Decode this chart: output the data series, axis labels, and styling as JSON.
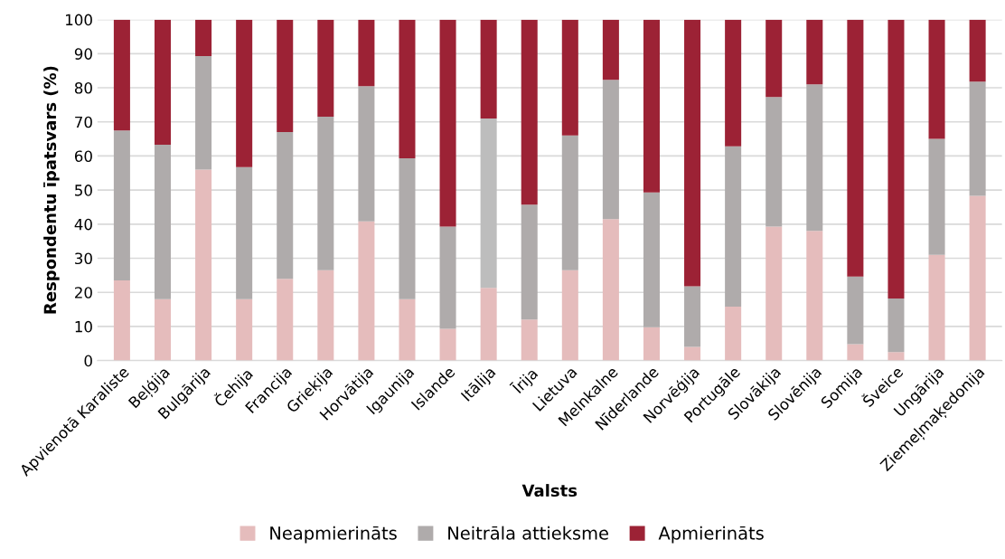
{
  "chart_data": {
    "type": "bar",
    "stacked": true,
    "xlabel": "Valsts",
    "ylabel": "Respondentu īpatsvars (%)",
    "categories": [
      "Apvienotā Karaliste",
      "Beļģija",
      "Bulgārija",
      "Čehija",
      "Francija",
      "Grieķija",
      "Horvātija",
      "Igaunija",
      "Islande",
      "Itālija",
      "Īrija",
      "Lietuva",
      "Melnkalne",
      "Nīderlande",
      "Norvēģija",
      "Portugāle",
      "Slovākija",
      "Slovēnija",
      "Somija",
      "Šveice",
      "Ungārija",
      "Ziemeļmaķedonija"
    ],
    "series": [
      {
        "name": "Neapmierināts",
        "color": "#e5bcbc",
        "values": [
          23.5,
          18,
          56,
          18,
          24,
          26.5,
          40.8,
          18,
          9.3,
          21.3,
          12,
          26.5,
          41.5,
          9.8,
          4,
          15.8,
          39.3,
          38,
          4.8,
          2.5,
          31,
          48.3
        ]
      },
      {
        "name": "Neitrāla attieksme",
        "color": "#afabab",
        "colors": [
          "#afabab",
          "#afabab",
          "#afabab",
          "#afabab",
          "#afabab",
          "#afabab",
          "#afabab",
          "#afabab",
          "#afabab",
          "#bdbdbd",
          "#afabab",
          "#afabab",
          "#afabab",
          "#afabab",
          "#afabab",
          "#afabab",
          "#afabab",
          "#afabab",
          "#afabab",
          "#afabab",
          "#afabab",
          "#afabab"
        ],
        "values": [
          44,
          45.3,
          33.3,
          38.7,
          43,
          45,
          39.7,
          41.3,
          30,
          49.7,
          33.7,
          39.5,
          40.8,
          39.5,
          17.8,
          47,
          38,
          43,
          19.8,
          15.7,
          34,
          33.5
        ]
      },
      {
        "name": "Apmierināts",
        "color": "#9c2235",
        "values": [
          32.5,
          36.7,
          10.7,
          43.3,
          33,
          28.5,
          19.5,
          40.7,
          60.7,
          29,
          54.3,
          34,
          17.7,
          50.7,
          78.2,
          37.2,
          22.7,
          19,
          75.4,
          81.8,
          35,
          18.2
        ]
      }
    ],
    "ylim": [
      0,
      100
    ],
    "yticks": [
      0,
      10,
      20,
      30,
      40,
      50,
      60,
      70,
      80,
      90,
      100
    ],
    "grid": "y",
    "legend": "bottom"
  }
}
